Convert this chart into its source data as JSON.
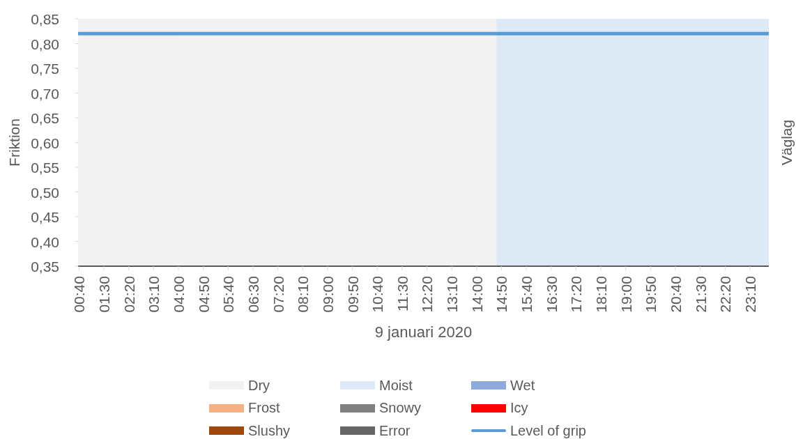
{
  "chart_data": {
    "type": "line",
    "xlabel": "9 januari 2020",
    "ylabel": "Friktion",
    "y2label": "Väglag",
    "x": [
      0.6667,
      23.8
    ],
    "xlim": [
      0.6333,
      23.8
    ],
    "xticks": [
      {
        "value": 0.6667,
        "label": "00:40"
      },
      {
        "value": 1.5,
        "label": "01:30"
      },
      {
        "value": 2.3333,
        "label": "02:20"
      },
      {
        "value": 3.1667,
        "label": "03:10"
      },
      {
        "value": 4,
        "label": "04:00"
      },
      {
        "value": 4.8333,
        "label": "04:50"
      },
      {
        "value": 5.6667,
        "label": "05:40"
      },
      {
        "value": 6.5,
        "label": "06:30"
      },
      {
        "value": 7.3333,
        "label": "07:20"
      },
      {
        "value": 8.1667,
        "label": "08:10"
      },
      {
        "value": 9,
        "label": "09:00"
      },
      {
        "value": 9.8333,
        "label": "09:50"
      },
      {
        "value": 10.6667,
        "label": "10:40"
      },
      {
        "value": 11.5,
        "label": "11:30"
      },
      {
        "value": 12.3333,
        "label": "12:20"
      },
      {
        "value": 13.1667,
        "label": "13:10"
      },
      {
        "value": 14,
        "label": "14:00"
      },
      {
        "value": 14.8333,
        "label": "14:50"
      },
      {
        "value": 15.6667,
        "label": "15:40"
      },
      {
        "value": 16.5,
        "label": "16:30"
      },
      {
        "value": 17.3333,
        "label": "17:20"
      },
      {
        "value": 18.1667,
        "label": "18:10"
      },
      {
        "value": 19,
        "label": "19:00"
      },
      {
        "value": 19.8333,
        "label": "19:50"
      },
      {
        "value": 20.6667,
        "label": "20:40"
      },
      {
        "value": 21.5,
        "label": "21:30"
      },
      {
        "value": 22.3333,
        "label": "22:20"
      },
      {
        "value": 23.1667,
        "label": "23:10"
      }
    ],
    "ylim": [
      0.35,
      0.85
    ],
    "yticks": [
      {
        "value": 0.35,
        "label": "0,35"
      },
      {
        "value": 0.4,
        "label": "0,40"
      },
      {
        "value": 0.45,
        "label": "0,45"
      },
      {
        "value": 0.5,
        "label": "0,50"
      },
      {
        "value": 0.55,
        "label": "0,55"
      },
      {
        "value": 0.6,
        "label": "0,60"
      },
      {
        "value": 0.65,
        "label": "0,65"
      },
      {
        "value": 0.7,
        "label": "0,70"
      },
      {
        "value": 0.75,
        "label": "0,75"
      },
      {
        "value": 0.8,
        "label": "0,80"
      },
      {
        "value": 0.85,
        "label": "0,85"
      }
    ],
    "bands": [
      {
        "axis": "x",
        "from": 0.6333,
        "to": 14.6667,
        "label": "Dry",
        "color": "#f2f2f2"
      },
      {
        "axis": "x",
        "from": 14.6667,
        "to": 23.8,
        "label": "Moist",
        "color": "#dde9f5"
      }
    ],
    "series": [
      {
        "name": "Wet",
        "type": "area",
        "color": "#8eaadb",
        "values": [
          null,
          null
        ]
      },
      {
        "name": "Frost",
        "type": "area",
        "color": "#f4b183",
        "values": [
          null,
          null
        ]
      },
      {
        "name": "Snowy",
        "type": "area",
        "color": "#808080",
        "values": [
          null,
          null
        ]
      },
      {
        "name": "Icy",
        "type": "area",
        "color": "#ff0000",
        "values": [
          null,
          null
        ]
      },
      {
        "name": "Slushy",
        "type": "area",
        "color": "#9e480e",
        "values": [
          null,
          null
        ]
      },
      {
        "name": "Error",
        "type": "area",
        "color": "#666666",
        "values": [
          null,
          null
        ]
      },
      {
        "name": "Level of grip",
        "color": "#5b9bd5",
        "values": [
          0.82,
          0.82
        ]
      }
    ],
    "legend": "bottom"
  }
}
